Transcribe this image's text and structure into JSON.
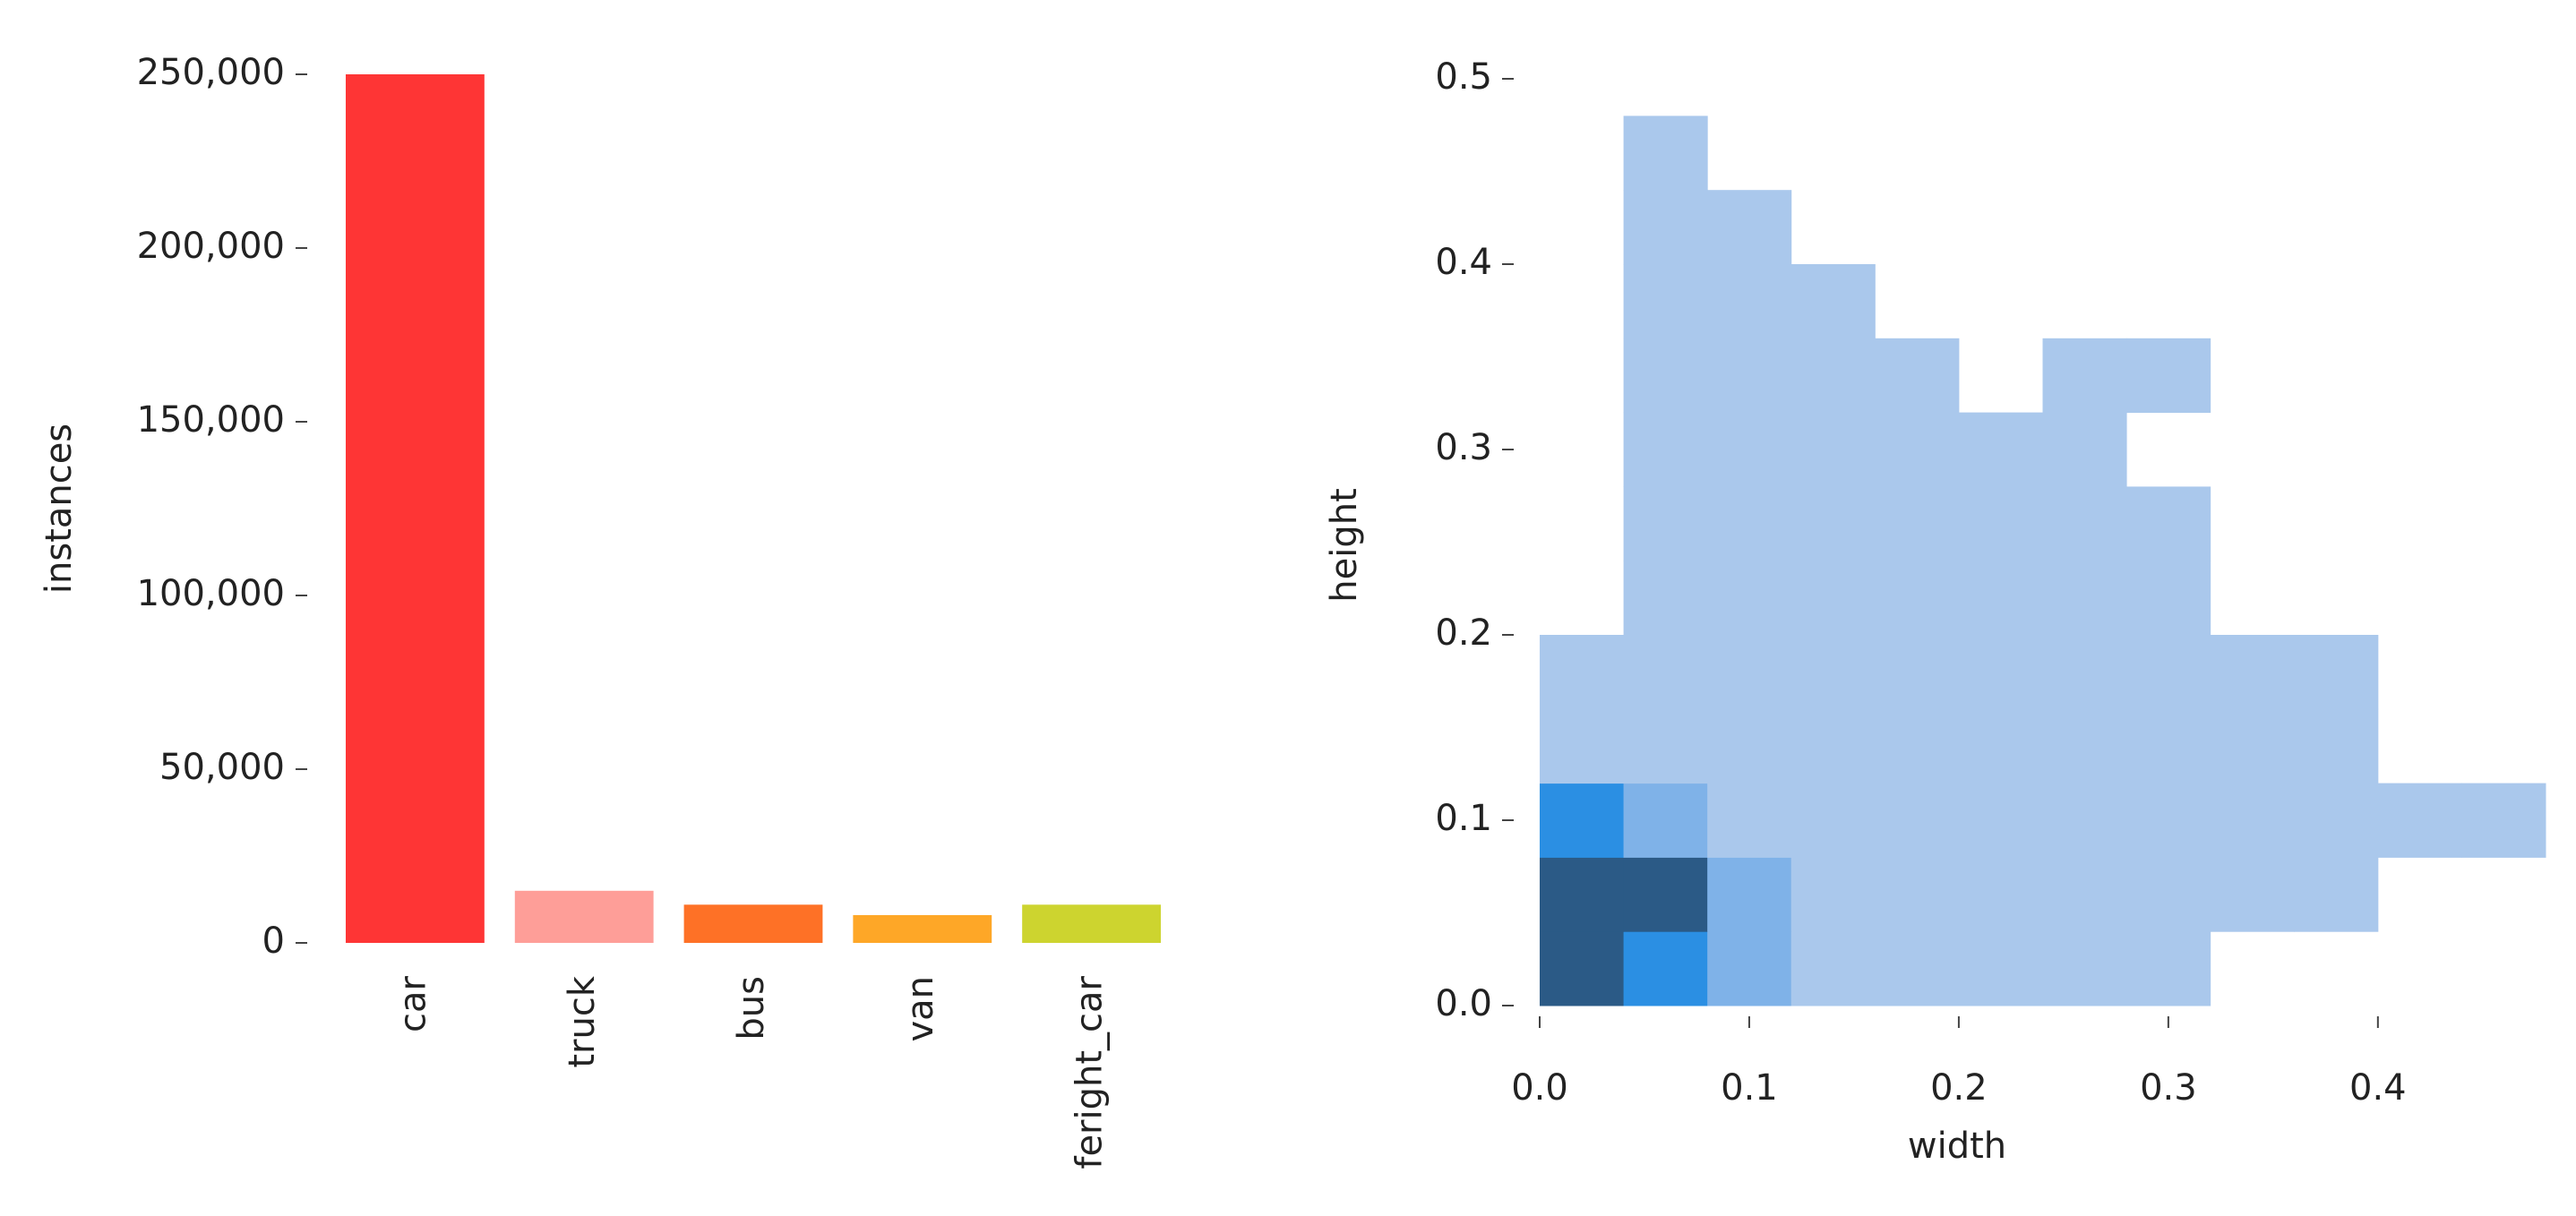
{
  "chart_data": [
    {
      "type": "bar",
      "ylabel": "instances",
      "categories": [
        "car",
        "truck",
        "bus",
        "van",
        "feright_car"
      ],
      "values": [
        250000,
        15000,
        11000,
        8000,
        11000
      ],
      "colors": [
        "#fe3535",
        "#fe9e98",
        "#fe7126",
        "#fea727",
        "#cdd42f"
      ],
      "ylim": [
        0,
        250000
      ],
      "yticks": [
        0,
        {
          "value": 50000,
          "label": "50,000"
        },
        {
          "value": 100000,
          "label": "100,000"
        },
        {
          "value": 150000,
          "label": "150,000"
        },
        {
          "value": 200000,
          "label": "200,000"
        },
        {
          "value": 250000,
          "label": "250,000"
        }
      ]
    },
    {
      "type": "hist2d",
      "xlabel": "width",
      "ylabel": "height",
      "xbins": [
        0,
        0.04,
        0.08,
        0.12,
        0.16,
        0.2,
        0.24,
        0.28,
        0.32,
        0.36,
        0.4,
        0.44,
        0.48
      ],
      "ybins": [
        0,
        0.04,
        0.08,
        0.12,
        0.16,
        0.2,
        0.24,
        0.28,
        0.32,
        0.36,
        0.4,
        0.44,
        0.48
      ],
      "counts": [
        [
          4,
          3,
          2,
          1,
          1,
          1,
          1,
          1,
          0,
          0,
          0,
          0
        ],
        [
          4,
          4,
          2,
          1,
          1,
          1,
          1,
          1,
          1,
          1,
          0,
          0
        ],
        [
          3,
          2,
          1,
          1,
          1,
          1,
          1,
          1,
          1,
          1,
          1,
          1
        ],
        [
          1,
          1,
          1,
          1,
          1,
          1,
          1,
          1,
          1,
          1,
          0,
          0
        ],
        [
          1,
          1,
          1,
          1,
          1,
          1,
          1,
          1,
          1,
          1,
          0,
          0
        ],
        [
          0,
          1,
          1,
          1,
          1,
          1,
          1,
          1,
          0,
          0,
          0,
          0
        ],
        [
          0,
          1,
          1,
          1,
          1,
          1,
          1,
          1,
          0,
          0,
          0,
          0
        ],
        [
          0,
          1,
          1,
          1,
          1,
          1,
          1,
          0,
          0,
          0,
          0,
          0
        ],
        [
          0,
          1,
          1,
          1,
          1,
          0,
          1,
          1,
          0,
          0,
          0,
          0
        ],
        [
          0,
          1,
          1,
          1,
          0,
          0,
          0,
          0,
          0,
          0,
          0,
          0
        ],
        [
          0,
          1,
          1,
          0,
          0,
          0,
          0,
          0,
          0,
          0,
          0,
          0
        ],
        [
          0,
          1,
          0,
          0,
          0,
          0,
          0,
          0,
          0,
          0,
          0,
          0
        ]
      ],
      "colors": [
        "#aac8ec",
        "#7fb2e8",
        "#2b8fe3",
        "#2b5a86"
      ],
      "xlim": [
        0,
        0.48
      ],
      "ylim": [
        0,
        0.5
      ],
      "xticks": [
        {
          "value": 0,
          "label": "0.0"
        },
        0.1,
        0.2,
        0.3,
        0.4
      ],
      "yticks": [
        {
          "value": 0,
          "label": "0.0"
        },
        0.1,
        0.2,
        0.3,
        0.4,
        0.5
      ]
    }
  ]
}
